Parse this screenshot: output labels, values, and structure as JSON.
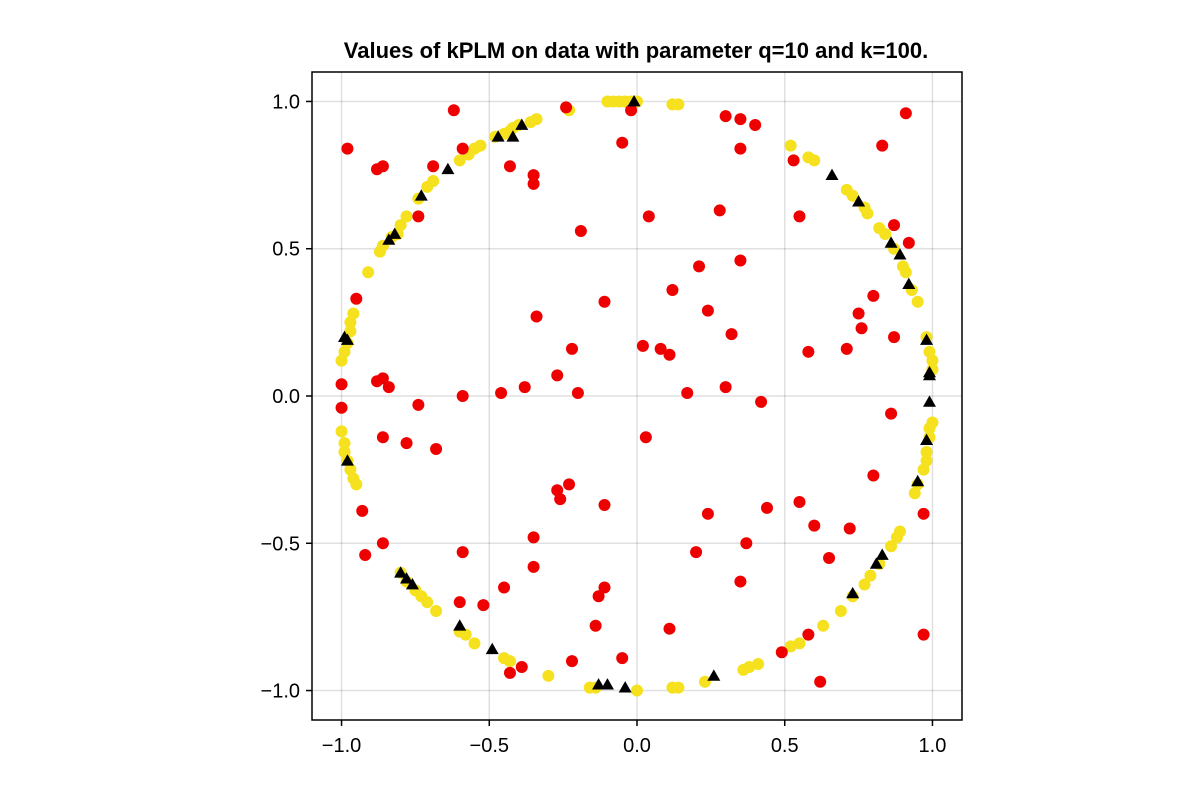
{
  "chart_data": {
    "type": "scatter",
    "title": "Values of kPLM on data with parameter q=10 and k=100.",
    "xlabel": "",
    "ylabel": "",
    "xlim": [
      -1.1,
      1.1
    ],
    "ylim": [
      -1.1,
      1.1
    ],
    "x_ticks": [
      -1.0,
      -0.5,
      0.0,
      0.5,
      1.0
    ],
    "y_ticks": [
      -1.0,
      -0.5,
      0.0,
      0.5,
      1.0
    ],
    "x_tick_labels": [
      "−1.0",
      "−0.5",
      "0.0",
      "0.5",
      "1.0"
    ],
    "y_tick_labels": [
      "−1.0",
      "−0.5",
      "0.0",
      "0.5",
      "1.0"
    ],
    "grid": true,
    "colors": {
      "circle": "#f5e11e",
      "noise": "#ee0000",
      "outlier": "#000000"
    },
    "series": [
      {
        "marker": "circle",
        "color": "#f5e11e",
        "points": [
          [
            -0.1,
            1.0
          ],
          [
            -0.08,
            1.0
          ],
          [
            -0.06,
            1.0
          ],
          [
            -0.04,
            1.0
          ],
          [
            -0.02,
            1.0
          ],
          [
            0.0,
            1.0
          ],
          [
            0.12,
            0.99
          ],
          [
            0.14,
            0.99
          ],
          [
            -0.23,
            0.97
          ],
          [
            -0.36,
            0.93
          ],
          [
            -0.43,
            0.9
          ],
          [
            -0.48,
            0.88
          ],
          [
            -0.53,
            0.85
          ],
          [
            -0.55,
            0.84
          ],
          [
            -0.57,
            0.82
          ],
          [
            -0.6,
            0.8
          ],
          [
            -0.69,
            0.73
          ],
          [
            -0.71,
            0.71
          ],
          [
            -0.74,
            0.67
          ],
          [
            -0.78,
            0.61
          ],
          [
            -0.8,
            0.58
          ],
          [
            -0.81,
            0.55
          ],
          [
            -0.83,
            0.54
          ],
          [
            -0.86,
            0.51
          ],
          [
            -0.87,
            0.49
          ],
          [
            -0.91,
            0.42
          ],
          [
            -0.96,
            0.28
          ],
          [
            -0.97,
            0.25
          ],
          [
            -0.97,
            0.22
          ],
          [
            -0.98,
            0.18
          ],
          [
            -0.99,
            0.15
          ],
          [
            -1.0,
            0.12
          ],
          [
            -1.0,
            -0.12
          ],
          [
            -0.99,
            -0.16
          ],
          [
            -0.99,
            -0.19
          ],
          [
            -0.98,
            -0.22
          ],
          [
            -0.97,
            -0.25
          ],
          [
            -0.96,
            -0.28
          ],
          [
            -0.95,
            -0.3
          ],
          [
            -0.8,
            -0.6
          ],
          [
            -0.78,
            -0.63
          ],
          [
            -0.75,
            -0.66
          ],
          [
            -0.73,
            -0.68
          ],
          [
            -0.71,
            -0.7
          ],
          [
            -0.68,
            -0.73
          ],
          [
            -0.6,
            -0.8
          ],
          [
            -0.58,
            -0.81
          ],
          [
            -0.55,
            -0.84
          ],
          [
            -0.45,
            -0.89
          ],
          [
            -0.43,
            -0.9
          ],
          [
            -0.3,
            -0.95
          ],
          [
            -0.16,
            -0.99
          ],
          [
            -0.14,
            -0.99
          ],
          [
            0.0,
            -1.0
          ],
          [
            0.12,
            -0.99
          ],
          [
            0.14,
            -0.99
          ],
          [
            0.23,
            -0.97
          ],
          [
            0.36,
            -0.93
          ],
          [
            0.38,
            -0.92
          ],
          [
            0.41,
            -0.91
          ],
          [
            0.52,
            -0.85
          ],
          [
            0.55,
            -0.84
          ],
          [
            0.63,
            -0.78
          ],
          [
            0.69,
            -0.73
          ],
          [
            0.73,
            -0.68
          ],
          [
            0.77,
            -0.64
          ],
          [
            0.79,
            -0.61
          ],
          [
            0.82,
            -0.57
          ],
          [
            0.86,
            -0.51
          ],
          [
            0.88,
            -0.48
          ],
          [
            0.89,
            -0.46
          ],
          [
            0.94,
            -0.33
          ],
          [
            0.95,
            -0.3
          ],
          [
            0.97,
            -0.25
          ],
          [
            0.98,
            -0.22
          ],
          [
            0.98,
            -0.19
          ],
          [
            0.99,
            -0.14
          ],
          [
            0.99,
            -0.11
          ],
          [
            1.0,
            -0.09
          ],
          [
            1.0,
            0.09
          ],
          [
            1.0,
            0.12
          ],
          [
            0.99,
            0.15
          ],
          [
            0.98,
            0.2
          ],
          [
            0.95,
            0.32
          ],
          [
            0.93,
            0.36
          ],
          [
            0.91,
            0.42
          ],
          [
            0.9,
            0.44
          ],
          [
            0.87,
            0.5
          ],
          [
            0.84,
            0.55
          ],
          [
            0.82,
            0.57
          ],
          [
            0.78,
            0.62
          ],
          [
            0.77,
            0.64
          ],
          [
            0.73,
            0.68
          ],
          [
            0.71,
            0.7
          ],
          [
            0.6,
            0.8
          ],
          [
            0.58,
            0.81
          ],
          [
            0.52,
            0.85
          ],
          [
            -0.34,
            0.94
          ],
          [
            -0.42,
            0.91
          ],
          [
            -0.45,
            0.89
          ],
          [
            -0.4,
            0.92
          ]
        ]
      },
      {
        "marker": "circle",
        "color": "#ee0000",
        "points": [
          [
            -0.98,
            0.84
          ],
          [
            -0.88,
            0.77
          ],
          [
            -0.86,
            0.78
          ],
          [
            -0.69,
            0.78
          ],
          [
            -0.62,
            0.97
          ],
          [
            -0.59,
            0.84
          ],
          [
            -0.43,
            0.78
          ],
          [
            -0.35,
            0.75
          ],
          [
            -0.35,
            0.72
          ],
          [
            -0.24,
            0.98
          ],
          [
            -0.05,
            0.86
          ],
          [
            -0.02,
            0.97
          ],
          [
            0.3,
            0.95
          ],
          [
            0.35,
            0.94
          ],
          [
            0.4,
            0.92
          ],
          [
            0.35,
            0.84
          ],
          [
            0.53,
            0.8
          ],
          [
            0.83,
            0.85
          ],
          [
            0.91,
            0.96
          ],
          [
            -0.74,
            0.61
          ],
          [
            -0.19,
            0.56
          ],
          [
            0.04,
            0.61
          ],
          [
            0.28,
            0.63
          ],
          [
            0.55,
            0.61
          ],
          [
            0.87,
            0.58
          ],
          [
            0.92,
            0.52
          ],
          [
            0.21,
            0.44
          ],
          [
            0.35,
            0.46
          ],
          [
            0.8,
            0.34
          ],
          [
            -0.95,
            0.33
          ],
          [
            -0.11,
            0.32
          ],
          [
            0.12,
            0.36
          ],
          [
            0.75,
            0.28
          ],
          [
            -0.34,
            0.27
          ],
          [
            0.24,
            0.29
          ],
          [
            0.76,
            0.23
          ],
          [
            -0.22,
            0.16
          ],
          [
            0.02,
            0.17
          ],
          [
            0.08,
            0.16
          ],
          [
            0.11,
            0.14
          ],
          [
            0.32,
            0.21
          ],
          [
            0.58,
            0.15
          ],
          [
            0.71,
            0.16
          ],
          [
            0.87,
            0.2
          ],
          [
            -0.88,
            0.05
          ],
          [
            -0.86,
            0.06
          ],
          [
            -0.84,
            0.03
          ],
          [
            -0.27,
            0.07
          ],
          [
            -1.0,
            0.04
          ],
          [
            -0.59,
            0.0
          ],
          [
            -0.46,
            0.01
          ],
          [
            -0.38,
            0.03
          ],
          [
            -0.2,
            0.01
          ],
          [
            0.17,
            0.01
          ],
          [
            0.3,
            0.03
          ],
          [
            0.42,
            -0.02
          ],
          [
            -1.0,
            -0.04
          ],
          [
            -0.74,
            -0.03
          ],
          [
            0.86,
            -0.06
          ],
          [
            0.03,
            -0.14
          ],
          [
            -0.86,
            -0.14
          ],
          [
            -0.78,
            -0.16
          ],
          [
            -0.68,
            -0.18
          ],
          [
            0.8,
            -0.27
          ],
          [
            -0.27,
            -0.32
          ],
          [
            -0.23,
            -0.3
          ],
          [
            -0.26,
            -0.35
          ],
          [
            -0.11,
            -0.37
          ],
          [
            0.24,
            -0.4
          ],
          [
            0.44,
            -0.38
          ],
          [
            0.55,
            -0.36
          ],
          [
            -0.93,
            -0.39
          ],
          [
            0.72,
            -0.45
          ],
          [
            0.97,
            -0.4
          ],
          [
            -0.35,
            -0.48
          ],
          [
            0.6,
            -0.44
          ],
          [
            -0.86,
            -0.5
          ],
          [
            -0.59,
            -0.53
          ],
          [
            -0.92,
            -0.54
          ],
          [
            0.2,
            -0.53
          ],
          [
            0.37,
            -0.5
          ],
          [
            -0.35,
            -0.58
          ],
          [
            0.65,
            -0.55
          ],
          [
            0.35,
            -0.63
          ],
          [
            -0.45,
            -0.65
          ],
          [
            -0.11,
            -0.65
          ],
          [
            -0.13,
            -0.68
          ],
          [
            -0.6,
            -0.7
          ],
          [
            -0.52,
            -0.71
          ],
          [
            -0.14,
            -0.78
          ],
          [
            0.11,
            -0.79
          ],
          [
            0.58,
            -0.81
          ],
          [
            0.97,
            -0.81
          ],
          [
            -0.22,
            -0.9
          ],
          [
            -0.05,
            -0.89
          ],
          [
            0.49,
            -0.87
          ],
          [
            -0.43,
            -0.94
          ],
          [
            -0.39,
            -0.92
          ],
          [
            0.62,
            -0.97
          ]
        ]
      },
      {
        "marker": "triangle",
        "color": "#000000",
        "points": [
          [
            -0.01,
            1.0
          ],
          [
            -0.39,
            0.92
          ],
          [
            -0.42,
            0.88
          ],
          [
            -0.47,
            0.88
          ],
          [
            -0.64,
            0.77
          ],
          [
            -0.73,
            0.68
          ],
          [
            -0.82,
            0.55
          ],
          [
            -0.84,
            0.53
          ],
          [
            -0.99,
            0.2
          ],
          [
            -0.98,
            0.19
          ],
          [
            0.66,
            0.75
          ],
          [
            0.75,
            0.66
          ],
          [
            0.86,
            0.52
          ],
          [
            0.89,
            0.48
          ],
          [
            0.92,
            0.38
          ],
          [
            0.98,
            0.19
          ],
          [
            0.99,
            0.08
          ],
          [
            0.99,
            0.07
          ],
          [
            0.99,
            -0.02
          ],
          [
            0.98,
            -0.15
          ],
          [
            0.95,
            -0.29
          ],
          [
            -0.98,
            -0.22
          ],
          [
            -0.8,
            -0.6
          ],
          [
            -0.78,
            -0.62
          ],
          [
            -0.76,
            -0.64
          ],
          [
            -0.6,
            -0.78
          ],
          [
            -0.49,
            -0.86
          ],
          [
            -0.13,
            -0.98
          ],
          [
            -0.1,
            -0.98
          ],
          [
            -0.04,
            -0.99
          ],
          [
            0.26,
            -0.95
          ],
          [
            0.73,
            -0.67
          ],
          [
            0.81,
            -0.57
          ],
          [
            0.83,
            -0.54
          ]
        ]
      }
    ]
  }
}
